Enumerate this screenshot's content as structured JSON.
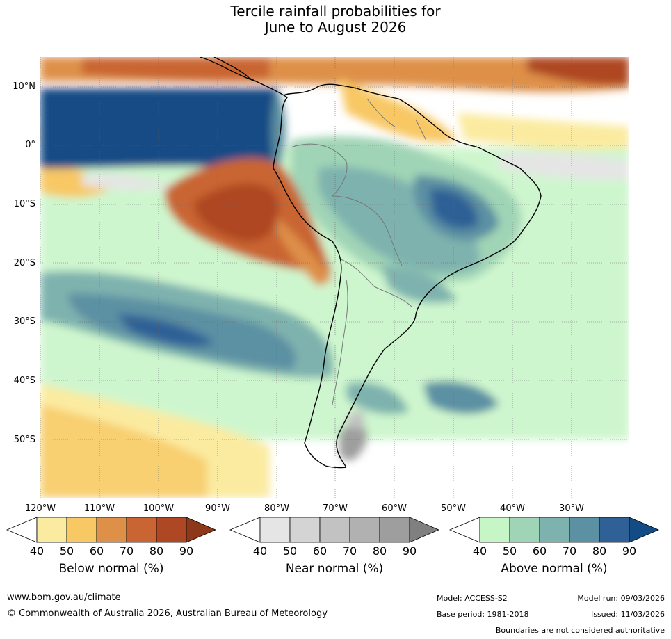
{
  "title": {
    "line1": "Tercile rainfall probabilities for",
    "line2": "June to August 2026"
  },
  "map": {
    "lat_labels": [
      "10°N",
      "0°",
      "10°S",
      "20°S",
      "30°S",
      "40°S",
      "50°S"
    ],
    "lon_labels": [
      "120°W",
      "110°W",
      "100°W",
      "90°W",
      "80°W",
      "70°W",
      "60°W",
      "50°W",
      "40°W",
      "30°W"
    ]
  },
  "colorbars": {
    "below": {
      "title": "Below normal (%)",
      "ticks": [
        "40",
        "50",
        "60",
        "70",
        "80",
        "90"
      ],
      "colors": [
        "#fbeba0",
        "#f8c865",
        "#de9048",
        "#c96533",
        "#ae4724",
        "#8d3818"
      ]
    },
    "near": {
      "title": "Near normal (%)",
      "ticks": [
        "40",
        "50",
        "60",
        "70",
        "80",
        "90"
      ],
      "colors": [
        "#e5e5e5",
        "#d4d4d4",
        "#c2c2c2",
        "#b1b1b1",
        "#9e9e9e",
        "#808080"
      ]
    },
    "above": {
      "title": "Above normal (%)",
      "ticks": [
        "40",
        "50",
        "60",
        "70",
        "80",
        "90"
      ],
      "colors": [
        "#c6f5c6",
        "#a0d4b6",
        "#7eb2ae",
        "#5c90a3",
        "#2f6096",
        "#134b85"
      ]
    }
  },
  "footer": {
    "url": "www.bom.gov.au/climate",
    "copyright": "© Commonwealth of Australia 2026, Australian Bureau of Meteorology",
    "model": "Model: ACCESS-S2",
    "model_run": "Model run: 09/03/2026",
    "base_period": "Base period: 1981-2018",
    "issued": "Issued: 11/03/2026",
    "disclaimer": "Boundaries are not considered authoritative"
  }
}
